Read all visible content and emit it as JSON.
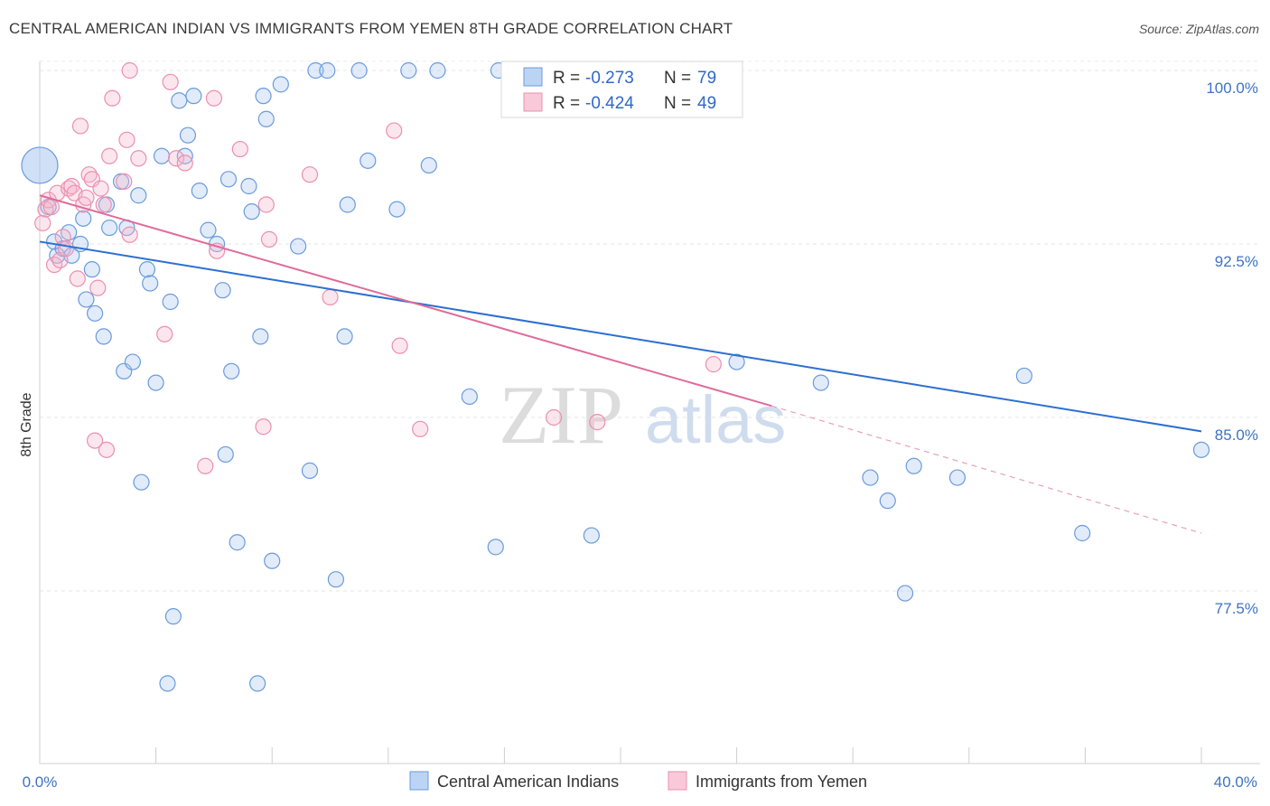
{
  "title": "CENTRAL AMERICAN INDIAN VS IMMIGRANTS FROM YEMEN 8TH GRADE CORRELATION CHART",
  "source": "Source: ZipAtlas.com",
  "watermark": {
    "zip": "ZIP",
    "atlas": "atlas"
  },
  "chart_data": {
    "type": "scatter",
    "title": "CENTRAL AMERICAN INDIAN VS IMMIGRANTS FROM YEMEN 8TH GRADE CORRELATION CHART",
    "xlabel": "",
    "ylabel": "8th Grade",
    "xlim": [
      0,
      40
    ],
    "ylim": [
      71.0,
      101.3
    ],
    "x_tick_labels": [
      "0.0%",
      "40.0%"
    ],
    "y_ticks": [
      77.5,
      85.0,
      92.5,
      100.0
    ],
    "y_tick_labels": [
      "77.5%",
      "85.0%",
      "92.5%",
      "100.0%"
    ],
    "grid": true,
    "legend_position": "top-center",
    "colors": {
      "blue": "#6a9bdc",
      "pink": "#eb8fb0",
      "blue_line": "#2c6fd0",
      "pink_line": "#e06b98"
    },
    "stats": [
      {
        "r_label": "R =",
        "r": "-0.273",
        "n_label": "N =",
        "n": "79"
      },
      {
        "r_label": "R =",
        "r": "-0.424",
        "n_label": "N =",
        "n": "49"
      }
    ],
    "series": [
      {
        "name": "Central American Indians",
        "color": "#6a9bdc",
        "trend": {
          "x": [
            0,
            40
          ],
          "y": [
            92.6,
            84.4
          ]
        },
        "points": [
          [
            0.0,
            95.9
          ],
          [
            0.3,
            94.1
          ],
          [
            0.5,
            92.6
          ],
          [
            0.6,
            92.0
          ],
          [
            0.8,
            92.3
          ],
          [
            1.0,
            93.0
          ],
          [
            1.1,
            92.0
          ],
          [
            1.4,
            92.5
          ],
          [
            1.5,
            93.6
          ],
          [
            1.6,
            90.1
          ],
          [
            1.8,
            91.4
          ],
          [
            1.9,
            89.5
          ],
          [
            2.2,
            88.5
          ],
          [
            2.3,
            94.2
          ],
          [
            2.4,
            93.2
          ],
          [
            2.8,
            95.2
          ],
          [
            2.9,
            87.0
          ],
          [
            3.0,
            93.2
          ],
          [
            3.2,
            87.4
          ],
          [
            3.4,
            94.6
          ],
          [
            3.5,
            82.2
          ],
          [
            3.7,
            91.4
          ],
          [
            3.8,
            90.8
          ],
          [
            4.0,
            86.5
          ],
          [
            4.2,
            96.3
          ],
          [
            4.4,
            73.5
          ],
          [
            4.5,
            90.0
          ],
          [
            4.6,
            76.4
          ],
          [
            4.8,
            98.7
          ],
          [
            5.0,
            96.3
          ],
          [
            5.1,
            97.2
          ],
          [
            5.3,
            98.9
          ],
          [
            5.5,
            94.8
          ],
          [
            5.8,
            93.1
          ],
          [
            6.1,
            92.5
          ],
          [
            6.3,
            90.5
          ],
          [
            6.4,
            83.4
          ],
          [
            6.5,
            95.3
          ],
          [
            6.6,
            87.0
          ],
          [
            6.8,
            79.6
          ],
          [
            7.2,
            95.0
          ],
          [
            7.3,
            93.9
          ],
          [
            7.5,
            73.5
          ],
          [
            7.6,
            88.5
          ],
          [
            7.7,
            98.9
          ],
          [
            7.8,
            97.9
          ],
          [
            8.0,
            78.8
          ],
          [
            8.3,
            99.4
          ],
          [
            8.9,
            92.4
          ],
          [
            9.3,
            82.7
          ],
          [
            9.5,
            100.0
          ],
          [
            9.9,
            100.0
          ],
          [
            10.5,
            88.5
          ],
          [
            10.6,
            94.2
          ],
          [
            11.0,
            100.0
          ],
          [
            11.3,
            96.1
          ],
          [
            12.3,
            94.0
          ],
          [
            12.7,
            100.0
          ],
          [
            13.4,
            95.9
          ],
          [
            13.7,
            100.0
          ],
          [
            14.8,
            85.9
          ],
          [
            15.7,
            79.4
          ],
          [
            15.8,
            100.0
          ],
          [
            17.0,
            100.0
          ],
          [
            19.0,
            79.9
          ],
          [
            22.7,
            100.0
          ],
          [
            24.0,
            87.4
          ],
          [
            26.9,
            86.5
          ],
          [
            28.6,
            82.4
          ],
          [
            29.2,
            81.4
          ],
          [
            29.8,
            77.4
          ],
          [
            30.1,
            82.9
          ],
          [
            31.6,
            82.4
          ],
          [
            33.9,
            86.8
          ],
          [
            35.9,
            80.0
          ],
          [
            40.0,
            83.6
          ],
          [
            10.2,
            78.0
          ],
          [
            18.5,
            100.0
          ],
          [
            20.5,
            99.5
          ]
        ]
      },
      {
        "name": "Immigrants from Yemen",
        "color": "#eb8fb0",
        "trend": {
          "x": [
            0,
            25.2
          ],
          "y": [
            94.6,
            85.5
          ]
        },
        "trend_extension": {
          "x": [
            25.2,
            40
          ],
          "y": [
            85.5,
            80.0
          ]
        },
        "points": [
          [
            0.1,
            93.4
          ],
          [
            0.2,
            94.0
          ],
          [
            0.3,
            94.4
          ],
          [
            0.4,
            94.1
          ],
          [
            0.5,
            91.6
          ],
          [
            0.6,
            94.7
          ],
          [
            0.7,
            91.8
          ],
          [
            0.8,
            92.8
          ],
          [
            0.9,
            92.3
          ],
          [
            1.0,
            94.9
          ],
          [
            1.1,
            95.0
          ],
          [
            1.2,
            94.7
          ],
          [
            1.3,
            91.0
          ],
          [
            1.4,
            97.6
          ],
          [
            1.5,
            94.2
          ],
          [
            1.6,
            94.5
          ],
          [
            1.7,
            95.5
          ],
          [
            1.8,
            95.3
          ],
          [
            1.9,
            84.0
          ],
          [
            2.0,
            90.6
          ],
          [
            2.1,
            94.9
          ],
          [
            2.2,
            94.2
          ],
          [
            2.3,
            83.6
          ],
          [
            2.4,
            96.3
          ],
          [
            2.5,
            98.8
          ],
          [
            2.9,
            95.2
          ],
          [
            3.0,
            97.0
          ],
          [
            3.1,
            92.9
          ],
          [
            3.1,
            100.0
          ],
          [
            3.4,
            96.2
          ],
          [
            4.5,
            99.5
          ],
          [
            4.7,
            96.2
          ],
          [
            5.0,
            96.0
          ],
          [
            5.7,
            82.9
          ],
          [
            6.0,
            98.8
          ],
          [
            6.1,
            92.2
          ],
          [
            6.9,
            96.6
          ],
          [
            7.7,
            84.6
          ],
          [
            7.8,
            94.2
          ],
          [
            7.9,
            92.7
          ],
          [
            9.3,
            95.5
          ],
          [
            10.0,
            90.2
          ],
          [
            12.2,
            97.4
          ],
          [
            12.4,
            88.1
          ],
          [
            13.1,
            84.5
          ],
          [
            17.7,
            85.0
          ],
          [
            19.2,
            84.8
          ],
          [
            23.2,
            87.3
          ],
          [
            4.3,
            88.6
          ]
        ]
      }
    ]
  }
}
